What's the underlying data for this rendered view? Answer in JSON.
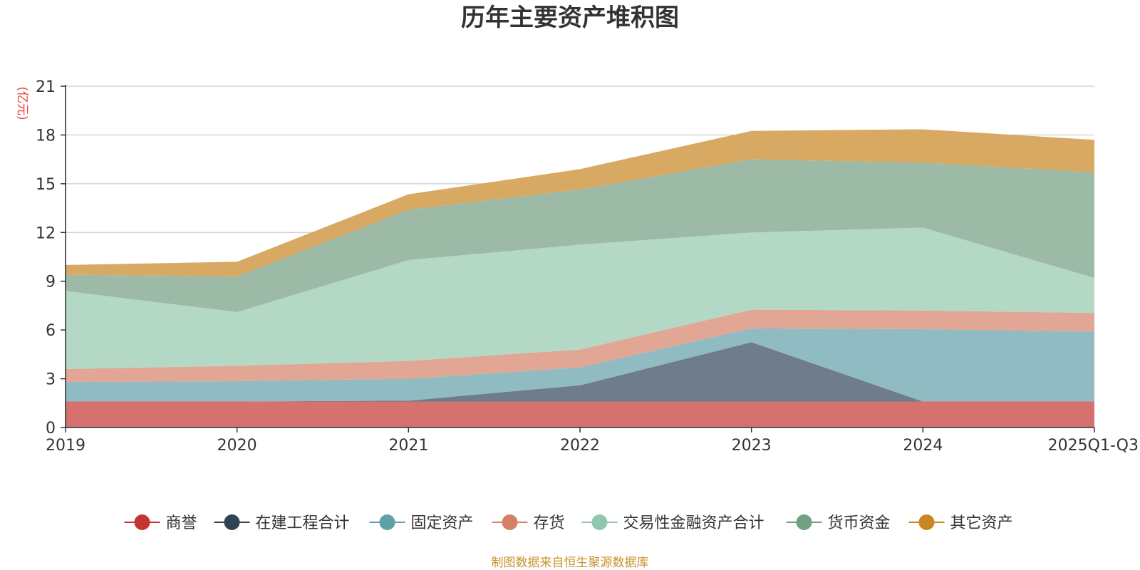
{
  "chart_data": {
    "type": "area",
    "stacked": true,
    "title": "历年主要资产堆积图",
    "ylabel": "(亿元)",
    "xlabel": "",
    "categories": [
      "2019",
      "2020",
      "2021",
      "2022",
      "2023",
      "2024",
      "2025Q1-Q3"
    ],
    "ylim": [
      0,
      21
    ],
    "yticks": [
      0,
      3,
      6,
      9,
      12,
      15,
      18,
      21
    ],
    "grid": true,
    "legend_position": "bottom",
    "series": [
      {
        "name": "商誉",
        "color": "#c23531",
        "fill": "#d5716e",
        "values": [
          1.6,
          1.6,
          1.6,
          1.6,
          1.6,
          1.6,
          1.6
        ]
      },
      {
        "name": "在建工程合计",
        "color": "#2f4554",
        "fill": "#6e7d89",
        "values": [
          0.0,
          0.0,
          0.05,
          1.0,
          3.65,
          0.0,
          0.0
        ]
      },
      {
        "name": "固定资产",
        "color": "#61a0a8",
        "fill": "#90bbc2",
        "values": [
          1.2,
          1.25,
          1.35,
          1.1,
          0.85,
          4.45,
          4.3
        ]
      },
      {
        "name": "存货",
        "color": "#d48265",
        "fill": "#e1a794",
        "values": [
          0.8,
          0.95,
          1.1,
          1.1,
          1.15,
          1.15,
          1.15
        ]
      },
      {
        "name": "交易性金融资产合计",
        "color": "#91c7ae",
        "fill": "#b3d8c6",
        "values": [
          4.8,
          3.3,
          6.2,
          6.45,
          4.75,
          5.1,
          2.15
        ]
      },
      {
        "name": "货币资金",
        "color": "#749f83",
        "fill": "#9dbaa6",
        "values": [
          1.0,
          2.2,
          3.1,
          3.4,
          4.5,
          4.0,
          6.5
        ]
      },
      {
        "name": "其它资产",
        "color": "#ca8622",
        "fill": "#d8a962",
        "values": [
          0.6,
          0.9,
          0.95,
          1.25,
          1.75,
          2.05,
          2.0
        ]
      }
    ],
    "source_note": "制图数据来自恒生聚源数据库"
  }
}
